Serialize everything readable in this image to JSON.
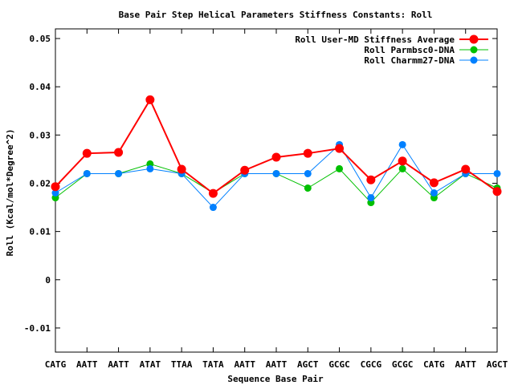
{
  "chart_data": {
    "type": "line",
    "title": "Base Pair Step Helical Parameters Stiffness Constants: Roll",
    "xlabel": "Sequence Base Pair",
    "ylabel": "Roll (Kcal/mol*Degree^2)",
    "categories": [
      "CATG",
      "AATT",
      "AATT",
      "ATAT",
      "TTAA",
      "TATA",
      "AATT",
      "AATT",
      "AGCT",
      "GCGC",
      "CGCG",
      "GCGC",
      "CATG",
      "AATT",
      "AGCT"
    ],
    "ylim": [
      -0.015,
      0.052
    ],
    "yticks": [
      -0.01,
      0,
      0.01,
      0.02,
      0.03,
      0.04,
      0.05
    ],
    "ytick_labels": [
      "-0.01",
      "0",
      "0.01",
      "0.02",
      "0.03",
      "0.04",
      "0.05"
    ],
    "grid": false,
    "legend_position": "top-right",
    "series": [
      {
        "name": "Roll User-MD Stiffness Average",
        "color": "#ff0000",
        "values": [
          0.0193,
          0.0262,
          0.0264,
          0.0373,
          0.0229,
          0.0179,
          0.0227,
          0.0254,
          0.0262,
          0.0272,
          0.0207,
          0.0246,
          0.0201,
          0.0229,
          0.0183
        ]
      },
      {
        "name": "Roll Parmbsc0-DNA",
        "color": "#00c000",
        "values": [
          0.017,
          0.022,
          0.022,
          0.024,
          0.022,
          0.018,
          0.022,
          0.022,
          0.019,
          0.023,
          0.016,
          0.023,
          0.017,
          0.022,
          0.019
        ]
      },
      {
        "name": "Roll Charmm27-DNA",
        "color": "#0080ff",
        "values": [
          0.018,
          0.022,
          0.022,
          0.023,
          0.022,
          0.015,
          0.022,
          0.022,
          0.022,
          0.028,
          0.017,
          0.028,
          0.018,
          0.022,
          0.022
        ]
      }
    ]
  }
}
